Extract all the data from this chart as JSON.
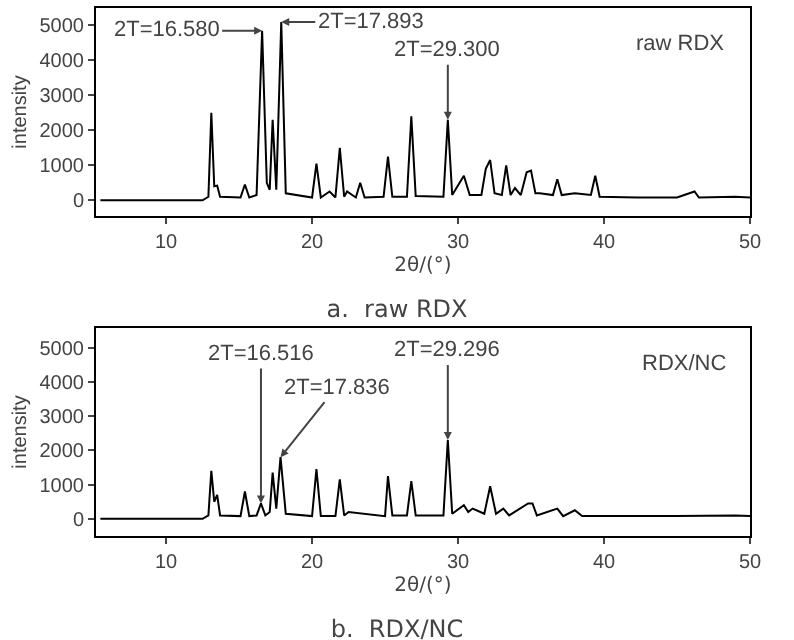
{
  "chart_data": [
    {
      "type": "line",
      "title": "a.  raw RDX",
      "xlabel": "2θ/(°)",
      "ylabel": "intensity",
      "xlim": [
        5.2,
        50
      ],
      "xticks": [
        10,
        20,
        30,
        40,
        50
      ],
      "ylim": [
        -450,
        5500
      ],
      "yticks": [
        0,
        1000,
        2000,
        3000,
        4000,
        5000
      ],
      "grid": false,
      "marker": "none",
      "line_style": "solid",
      "series": [
        {
          "color": "#000000",
          "x": [
            5.5,
            8,
            11,
            12.5,
            12.9,
            13.1,
            13.3,
            13.5,
            13.7,
            15.1,
            15.4,
            15.7,
            16.2,
            16.58,
            16.9,
            17.1,
            17.3,
            17.55,
            17.89,
            18.2,
            20,
            20.3,
            20.6,
            21.2,
            21.6,
            21.9,
            22.2,
            22.4,
            23.0,
            23.3,
            23.6,
            24.9,
            25.2,
            25.5,
            26.5,
            26.8,
            27.1,
            29.0,
            29.3,
            29.6,
            30.4,
            30.8,
            31.6,
            31.9,
            32.2,
            32.5,
            33.0,
            33.3,
            33.6,
            33.9,
            34.3,
            34.7,
            35.0,
            35.3,
            35.6,
            36.5,
            36.8,
            37.1,
            38.0,
            39.1,
            39.4,
            39.7,
            42.3,
            45,
            46.2,
            46.5,
            49,
            50
          ],
          "values": [
            0,
            0,
            0,
            0,
            100,
            2500,
            400,
            420,
            100,
            80,
            450,
            80,
            150,
            4850,
            500,
            300,
            2300,
            300,
            5100,
            200,
            80,
            1050,
            80,
            250,
            80,
            1500,
            100,
            250,
            80,
            500,
            80,
            100,
            1250,
            100,
            100,
            2400,
            120,
            100,
            2300,
            150,
            700,
            150,
            150,
            900,
            1150,
            200,
            150,
            1000,
            150,
            350,
            150,
            800,
            850,
            200,
            200,
            150,
            600,
            150,
            200,
            150,
            700,
            100,
            80,
            80,
            250,
            80,
            100,
            80
          ]
        }
      ],
      "annotations": [
        {
          "text": "2T=16.580",
          "x": 16.58,
          "y": 4850
        },
        {
          "text": "2T=17.893",
          "x": 17.89,
          "y": 5100
        },
        {
          "text": "2T=29.300",
          "x": 29.3,
          "y": 2300
        },
        "raw RDX"
      ]
    },
    {
      "type": "line",
      "title": "b.  RDX/NC",
      "xlabel": "2θ/(°)",
      "ylabel": "intensity",
      "xlim": [
        5.2,
        50
      ],
      "xticks": [
        10,
        20,
        30,
        40,
        50
      ],
      "ylim": [
        -500,
        5570
      ],
      "yticks": [
        0,
        1000,
        2000,
        3000,
        4000,
        5000
      ],
      "grid": false,
      "marker": "none",
      "line_style": "solid",
      "series": [
        {
          "color": "#000000",
          "x": [
            5.5,
            8,
            11,
            12.5,
            12.9,
            13.1,
            13.3,
            13.5,
            13.7,
            15.1,
            15.4,
            15.7,
            16.2,
            16.5,
            16.8,
            17.1,
            17.3,
            17.55,
            17.84,
            18.2,
            20,
            20.3,
            20.6,
            21.6,
            21.9,
            22.2,
            22.5,
            25.0,
            25.2,
            25.5,
            26.5,
            26.8,
            27.1,
            29.0,
            29.3,
            29.6,
            30.4,
            30.7,
            31.0,
            31.8,
            32.2,
            32.6,
            33.1,
            33.5,
            34.8,
            35.1,
            35.4,
            36.8,
            37.2,
            38.0,
            38.5,
            40,
            45,
            49,
            50
          ],
          "values": [
            0,
            0,
            0,
            0,
            100,
            1400,
            500,
            700,
            100,
            80,
            800,
            80,
            100,
            450,
            100,
            200,
            1350,
            300,
            1800,
            150,
            80,
            1450,
            80,
            80,
            1150,
            100,
            200,
            80,
            1250,
            100,
            100,
            1100,
            100,
            100,
            2300,
            150,
            400,
            200,
            300,
            150,
            950,
            150,
            300,
            100,
            450,
            450,
            100,
            300,
            80,
            250,
            80,
            80,
            80,
            100,
            80
          ]
        }
      ],
      "annotations": [
        {
          "text": "2T=16.516",
          "x": 16.5,
          "y": 450
        },
        {
          "text": "2T=17.836",
          "x": 17.84,
          "y": 1800
        },
        {
          "text": "2T=29.296",
          "x": 29.3,
          "y": 2300
        },
        "RDX/NC"
      ]
    }
  ]
}
